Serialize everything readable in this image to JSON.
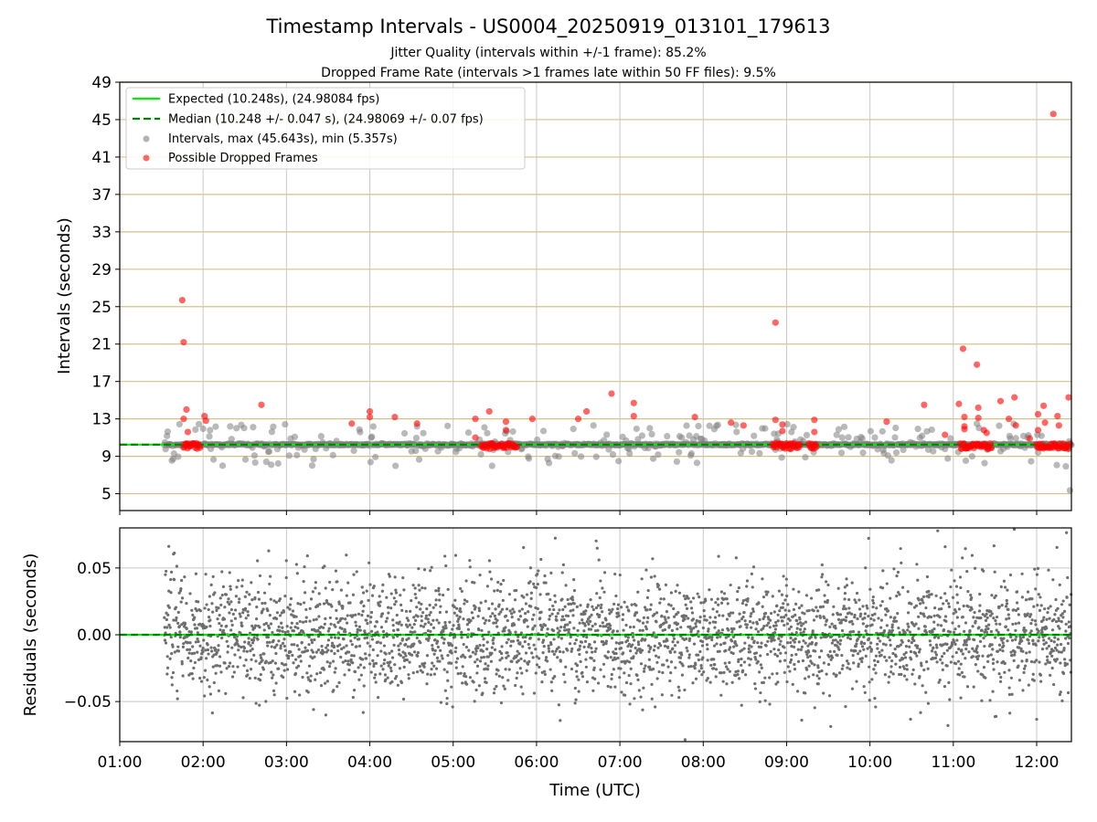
{
  "chart_data": [
    {
      "type": "scatter",
      "title": "Timestamp Intervals - US0004_20250919_013101_179613",
      "subtitle_1": "Jitter Quality (intervals within +/-1 frame): 85.2%",
      "subtitle_2": "Dropped Frame Rate (intervals >1 frames late within 50 FF files): 9.5%",
      "ylabel": "Intervals (seconds)",
      "xlim": [
        "01:00",
        "12:25"
      ],
      "ylim": [
        3.2,
        49
      ],
      "y_ticks": [
        5,
        9,
        13,
        17,
        21,
        25,
        29,
        33,
        37,
        41,
        45,
        49
      ],
      "grid": true,
      "legend_position": "top-left",
      "legend": [
        {
          "label": "Expected (10.248s), (24.98084 fps)",
          "kind": "line",
          "color": "#00ee00"
        },
        {
          "label": "Median (10.248 +/- 0.047 s), (24.98069 +/- 0.07 fps)",
          "kind": "dashed-line",
          "color": "#008000"
        },
        {
          "label": "Intervals, max (45.643s), min (5.357s)",
          "kind": "point",
          "color": "#808080"
        },
        {
          "label": "Possible Dropped Frames",
          "kind": "point",
          "color": "#ff0000"
        }
      ],
      "expected_interval": 10.248,
      "median_interval": 10.248,
      "dropped_frames": [
        {
          "t": "01:45",
          "v": 25.7
        },
        {
          "t": "01:46",
          "v": 21.2
        },
        {
          "t": "01:48",
          "v": 14.0
        },
        {
          "t": "01:46",
          "v": 13.0
        },
        {
          "t": "01:49",
          "v": 11.6
        },
        {
          "t": "02:01",
          "v": 13.3
        },
        {
          "t": "02:02",
          "v": 12.8
        },
        {
          "t": "02:42",
          "v": 14.5
        },
        {
          "t": "03:47",
          "v": 12.5
        },
        {
          "t": "04:00",
          "v": 13.8
        },
        {
          "t": "04:00",
          "v": 13.2
        },
        {
          "t": "04:18",
          "v": 13.2
        },
        {
          "t": "04:34",
          "v": 12.5
        },
        {
          "t": "05:16",
          "v": 13.0
        },
        {
          "t": "05:16",
          "v": 11.0
        },
        {
          "t": "05:26",
          "v": 13.8
        },
        {
          "t": "05:38",
          "v": 12.7
        },
        {
          "t": "05:38",
          "v": 11.8
        },
        {
          "t": "05:57",
          "v": 13.0
        },
        {
          "t": "06:30",
          "v": 13.0
        },
        {
          "t": "06:36",
          "v": 13.8
        },
        {
          "t": "06:54",
          "v": 15.7
        },
        {
          "t": "07:10",
          "v": 14.7
        },
        {
          "t": "07:10",
          "v": 13.3
        },
        {
          "t": "07:54",
          "v": 13.2
        },
        {
          "t": "08:20",
          "v": 12.6
        },
        {
          "t": "08:29",
          "v": 12.3
        },
        {
          "t": "08:52",
          "v": 23.3
        },
        {
          "t": "08:52",
          "v": 12.9
        },
        {
          "t": "08:57",
          "v": 12.4
        },
        {
          "t": "08:57",
          "v": 11.7
        },
        {
          "t": "09:20",
          "v": 12.9
        },
        {
          "t": "09:20",
          "v": 11.6
        },
        {
          "t": "10:12",
          "v": 12.7
        },
        {
          "t": "10:39",
          "v": 14.5
        },
        {
          "t": "10:54",
          "v": 11.3
        },
        {
          "t": "11:04",
          "v": 14.6
        },
        {
          "t": "11:07",
          "v": 20.5
        },
        {
          "t": "11:08",
          "v": 13.2
        },
        {
          "t": "11:08",
          "v": 12.2
        },
        {
          "t": "11:08",
          "v": 11.9
        },
        {
          "t": "11:17",
          "v": 18.8
        },
        {
          "t": "11:18",
          "v": 14.2
        },
        {
          "t": "11:18",
          "v": 13.1
        },
        {
          "t": "11:22",
          "v": 11.8
        },
        {
          "t": "11:24",
          "v": 11.5
        },
        {
          "t": "11:34",
          "v": 14.9
        },
        {
          "t": "11:40",
          "v": 13.0
        },
        {
          "t": "11:44",
          "v": 15.3
        },
        {
          "t": "11:45",
          "v": 12.3
        },
        {
          "t": "11:55",
          "v": 10.9
        },
        {
          "t": "12:01",
          "v": 13.5
        },
        {
          "t": "12:01",
          "v": 11.8
        },
        {
          "t": "12:05",
          "v": 14.4
        },
        {
          "t": "12:06",
          "v": 12.6
        },
        {
          "t": "12:12",
          "v": 45.6
        },
        {
          "t": "12:15",
          "v": 13.3
        },
        {
          "t": "12:16",
          "v": 12.3
        },
        {
          "t": "12:23",
          "v": 15.3
        }
      ],
      "dropped_clusters": [
        {
          "from": "01:46",
          "to": "01:58"
        },
        {
          "from": "05:20",
          "to": "05:46"
        },
        {
          "from": "08:50",
          "to": "09:10"
        },
        {
          "from": "09:16",
          "to": "09:22"
        },
        {
          "from": "11:05",
          "to": "11:28"
        },
        {
          "from": "12:00",
          "to": "12:24"
        }
      ],
      "interval_span": {
        "from": "01:32",
        "to": "12:25"
      }
    },
    {
      "type": "scatter",
      "ylabel": "Residuals (seconds)",
      "xlabel": "Time (UTC)",
      "xlim": [
        "01:00",
        "12:25"
      ],
      "ylim": [
        -0.08,
        0.08
      ],
      "y_ticks": [
        0.05,
        0.0,
        -0.05
      ],
      "y_tick_labels": [
        "0.05",
        "0.00",
        "−0.05"
      ],
      "x_ticks": [
        "01:00",
        "02:00",
        "03:00",
        "04:00",
        "05:00",
        "06:00",
        "07:00",
        "08:00",
        "09:00",
        "10:00",
        "11:00",
        "12:00"
      ],
      "grid": true,
      "residual_std": 0.022,
      "residual_span": {
        "from": "01:32",
        "to": "12:25"
      }
    }
  ],
  "colors": {
    "interval_point": "#808080",
    "residual_point": "#6e6e6e",
    "dropped_point": "#ff0000",
    "expected_line": "#00ee00",
    "median_line": "#008000",
    "horizontal_grid": "#d4c28a",
    "vertical_grid": "#c8c8c8"
  }
}
